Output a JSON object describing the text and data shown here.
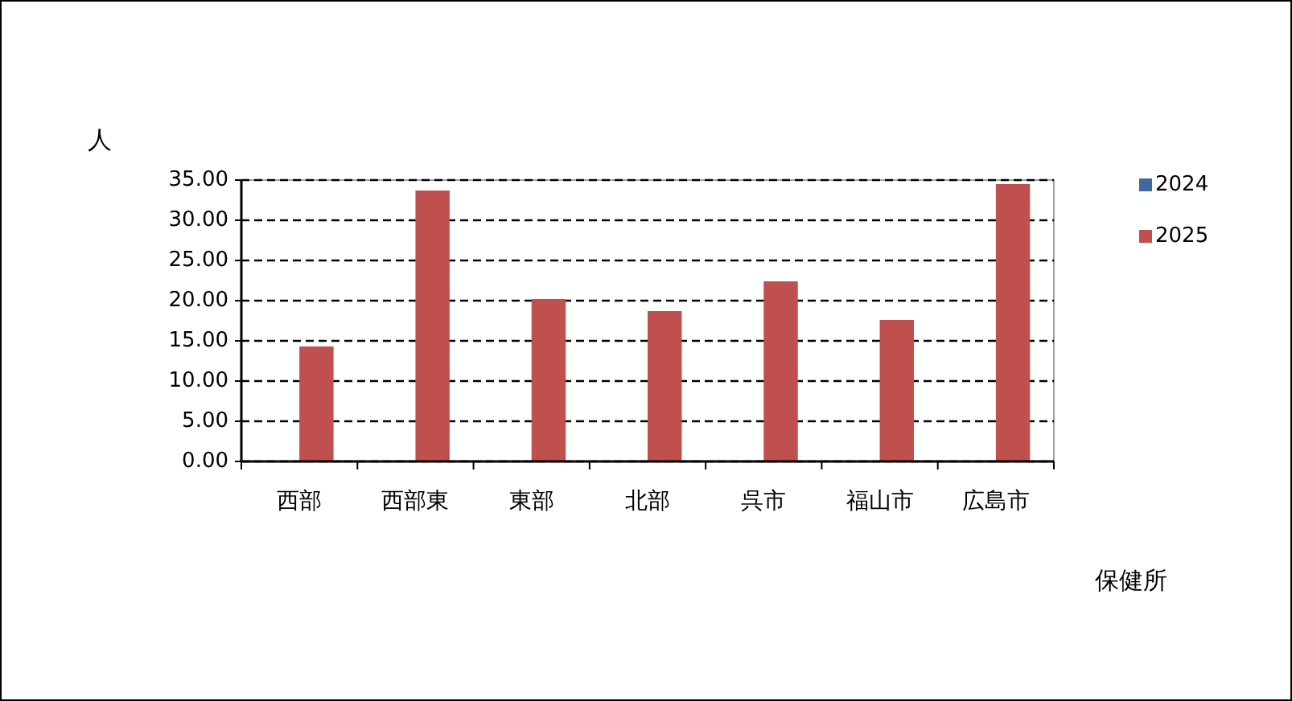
{
  "chart_data": {
    "type": "bar",
    "xlabel": "保健所",
    "ylabel": "人",
    "categories": [
      "西部",
      "西部東",
      "東部",
      "北部",
      "呉市",
      "福山市",
      "広島市"
    ],
    "series": [
      {
        "name": "2024",
        "color": "#3f6a9f",
        "values": [
          null,
          null,
          null,
          null,
          null,
          null,
          null
        ]
      },
      {
        "name": "2025",
        "color": "#c0504d",
        "values": [
          14.3,
          33.7,
          20.2,
          18.7,
          22.4,
          17.6,
          34.5
        ]
      }
    ],
    "ylim": [
      0,
      35
    ],
    "yticks": [
      {
        "value": 0,
        "label": "0.00"
      },
      {
        "value": 5,
        "label": "5.00"
      },
      {
        "value": 10,
        "label": "10.00"
      },
      {
        "value": 15,
        "label": "15.00"
      },
      {
        "value": 20,
        "label": "20.00"
      },
      {
        "value": 25,
        "label": "25.00"
      },
      {
        "value": 30,
        "label": "30.00"
      },
      {
        "value": 35,
        "label": "35.00"
      }
    ],
    "grid": "y",
    "legend": "right"
  }
}
